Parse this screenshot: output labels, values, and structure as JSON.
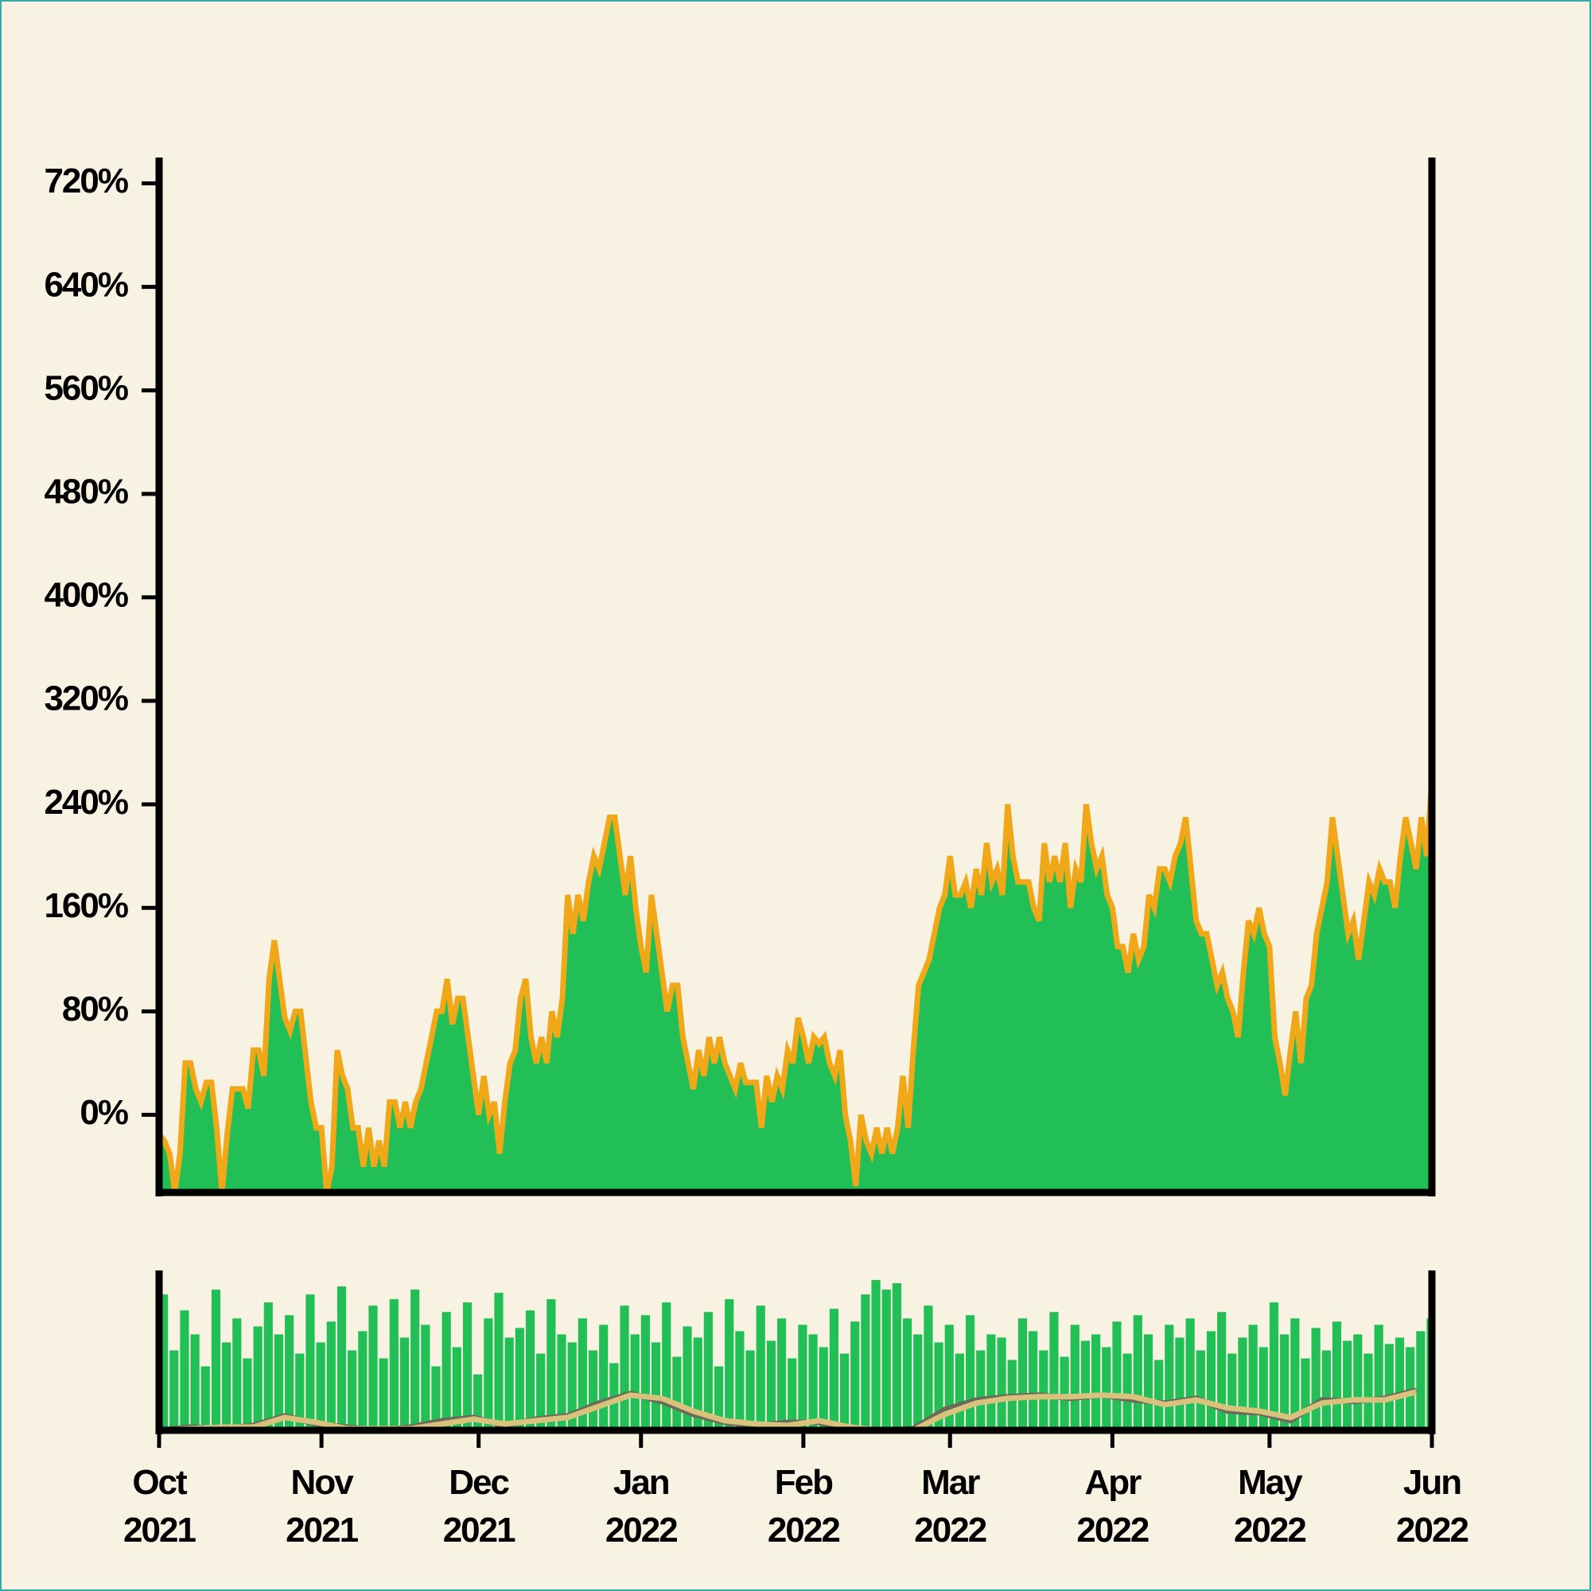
{
  "chart_data": [
    {
      "type": "area",
      "x": [
        0,
        1,
        2,
        3,
        4,
        5,
        6,
        7,
        8,
        9,
        10,
        11,
        12,
        13,
        14,
        15,
        16,
        17,
        18,
        19,
        20,
        21,
        22,
        23,
        24,
        25,
        26,
        27,
        28,
        29,
        30,
        31,
        32,
        33,
        34,
        35,
        36,
        37,
        38,
        39,
        40,
        41,
        42,
        43,
        44,
        45,
        46,
        47,
        48,
        49,
        50,
        51,
        52,
        53,
        54,
        55,
        56,
        57,
        58,
        59,
        60,
        61,
        62,
        63,
        64,
        65,
        66,
        67,
        68,
        69,
        70,
        71,
        72,
        73,
        74,
        75,
        76,
        77,
        78,
        79,
        80,
        81,
        82,
        83,
        84,
        85,
        86,
        87,
        88,
        89,
        90,
        91,
        92,
        93,
        94,
        95,
        96,
        97,
        98,
        99,
        100,
        101,
        102,
        103,
        104,
        105,
        106,
        107,
        108,
        109,
        110,
        111,
        112,
        113,
        114,
        115,
        116,
        117,
        118,
        119,
        120,
        121,
        122,
        123,
        124,
        125,
        126,
        127,
        128,
        129,
        130,
        131,
        132,
        133,
        134,
        135,
        136,
        137,
        138,
        139,
        140,
        141,
        142,
        143,
        144,
        145,
        146,
        147,
        148,
        149,
        150,
        151,
        152,
        153,
        154,
        155,
        156,
        157,
        158,
        159,
        160,
        161,
        162,
        163,
        164,
        165,
        166,
        167,
        168,
        169,
        170,
        171,
        172,
        173,
        174,
        175,
        176,
        177,
        178,
        179,
        180,
        181,
        182,
        183,
        184,
        185,
        186,
        187,
        188,
        189,
        190,
        191,
        192,
        193,
        194,
        195,
        196,
        197,
        198,
        199,
        200,
        201,
        202,
        203,
        204,
        205,
        206,
        207,
        208,
        209,
        210,
        211,
        212,
        213,
        214,
        215,
        216,
        217,
        218,
        219,
        220,
        221,
        222,
        223,
        224,
        225,
        226,
        227,
        228,
        229,
        230,
        231,
        232,
        233,
        234,
        235,
        236,
        237,
        238,
        239,
        240,
        241,
        242,
        243
      ],
      "values": [
        -15,
        -20,
        -30,
        -60,
        -30,
        40,
        40,
        20,
        10,
        25,
        25,
        -10,
        -60,
        -15,
        20,
        20,
        20,
        5,
        50,
        50,
        30,
        105,
        135,
        105,
        75,
        65,
        80,
        80,
        45,
        10,
        -10,
        -10,
        -60,
        -40,
        50,
        30,
        20,
        -10,
        -10,
        -40,
        -10,
        -40,
        -20,
        -40,
        10,
        10,
        -10,
        10,
        -10,
        10,
        20,
        40,
        60,
        80,
        80,
        105,
        70,
        90,
        90,
        60,
        30,
        0,
        30,
        0,
        10,
        -30,
        10,
        40,
        50,
        90,
        105,
        60,
        40,
        60,
        40,
        80,
        60,
        90,
        170,
        140,
        170,
        150,
        180,
        200,
        190,
        210,
        230,
        230,
        200,
        170,
        200,
        160,
        130,
        110,
        170,
        140,
        110,
        80,
        100,
        100,
        60,
        40,
        20,
        50,
        30,
        60,
        40,
        60,
        40,
        30,
        20,
        40,
        25,
        25,
        25,
        -10,
        30,
        10,
        30,
        20,
        50,
        40,
        75,
        60,
        40,
        60,
        55,
        60,
        40,
        30,
        50,
        0,
        -20,
        -55,
        0,
        -20,
        -30,
        -10,
        -30,
        -10,
        -30,
        -10,
        30,
        -10,
        50,
        100,
        110,
        120,
        140,
        160,
        170,
        200,
        170,
        170,
        180,
        160,
        190,
        170,
        210,
        180,
        190,
        170,
        240,
        200,
        180,
        180,
        180,
        160,
        150,
        210,
        180,
        200,
        180,
        210,
        160,
        190,
        180,
        240,
        210,
        190,
        200,
        170,
        160,
        130,
        130,
        110,
        140,
        120,
        130,
        170,
        160,
        190,
        190,
        180,
        200,
        210,
        230,
        190,
        150,
        140,
        140,
        120,
        100,
        110,
        90,
        80,
        60,
        110,
        150,
        140,
        160,
        140,
        130,
        60,
        40,
        15,
        50,
        80,
        40,
        90,
        100,
        140,
        160,
        180,
        230,
        200,
        170,
        140,
        150,
        120,
        150,
        180,
        170,
        190,
        180,
        180,
        160,
        200,
        230,
        210,
        190,
        230,
        200,
        260
      ],
      "color": "#21bf55",
      "line_color": "#f0a818",
      "xlim": [
        0,
        243
      ],
      "ylim": [
        -60,
        740
      ],
      "yticks": [
        {
          "value": 0,
          "label": "0%"
        },
        {
          "value": 80,
          "label": "80%"
        },
        {
          "value": 160,
          "label": "160%"
        },
        {
          "value": 240,
          "label": "240%"
        },
        {
          "value": 320,
          "label": "320%"
        },
        {
          "value": 400,
          "label": "400%"
        },
        {
          "value": 480,
          "label": "480%"
        },
        {
          "value": 560,
          "label": "560%"
        },
        {
          "value": 640,
          "label": "640%"
        },
        {
          "value": 720,
          "label": "720%"
        }
      ]
    },
    {
      "type": "bar",
      "x": [
        0,
        2,
        4,
        6,
        8,
        10,
        12,
        14,
        16,
        18,
        20,
        22,
        24,
        26,
        28,
        30,
        32,
        34,
        36,
        38,
        40,
        42,
        44,
        46,
        48,
        50,
        52,
        54,
        56,
        58,
        60,
        62,
        64,
        66,
        68,
        70,
        72,
        74,
        76,
        78,
        80,
        82,
        84,
        86,
        88,
        90,
        92,
        94,
        96,
        98,
        100,
        102,
        104,
        106,
        108,
        110,
        112,
        114,
        116,
        118,
        120,
        122,
        124,
        126,
        128,
        130,
        132,
        134,
        136,
        138,
        140,
        142,
        144,
        146,
        148,
        150,
        152,
        154,
        156,
        158,
        160,
        162,
        164,
        166,
        168,
        170,
        172,
        174,
        176,
        178,
        180,
        182,
        184,
        186,
        188,
        190,
        192,
        194,
        196,
        198,
        200,
        202,
        204,
        206,
        208,
        210,
        212,
        214,
        216,
        218,
        220,
        222,
        224,
        226,
        228,
        230,
        232,
        234,
        236,
        238,
        240,
        242
      ],
      "values": [
        85,
        50,
        75,
        60,
        40,
        88,
        55,
        70,
        45,
        65,
        80,
        60,
        72,
        48,
        85,
        55,
        68,
        90,
        50,
        62,
        78,
        45,
        82,
        58,
        88,
        66,
        40,
        74,
        52,
        80,
        35,
        70,
        86,
        58,
        64,
        75,
        48,
        82,
        60,
        55,
        70,
        50,
        66,
        42,
        78,
        60,
        72,
        55,
        80,
        46,
        65,
        58,
        74,
        40,
        82,
        62,
        50,
        78,
        56,
        70,
        45,
        66,
        60,
        52,
        76,
        48,
        68,
        85,
        94,
        88,
        92,
        70,
        60,
        78,
        55,
        66,
        48,
        72,
        50,
        60,
        58,
        44,
        70,
        62,
        50,
        74,
        46,
        66,
        56,
        60,
        52,
        68,
        48,
        72,
        60,
        44,
        66,
        58,
        70,
        50,
        62,
        74,
        48,
        58,
        66,
        52,
        80,
        60,
        70,
        45,
        64,
        50,
        68,
        56,
        60,
        48,
        66,
        54,
        58,
        52,
        62,
        70
      ],
      "color": "#21bf55",
      "xlim": [
        0,
        243
      ],
      "ylim": [
        0,
        100
      ],
      "xticks": [
        {
          "value": 0,
          "label": "Oct 2021"
        },
        {
          "value": 31,
          "label": "Nov 2021"
        },
        {
          "value": 61,
          "label": "Dec 2021"
        },
        {
          "value": 92,
          "label": "Jan 2022"
        },
        {
          "value": 123,
          "label": "Feb 2022"
        },
        {
          "value": 151,
          "label": "Mar 2022"
        },
        {
          "value": 182,
          "label": "Apr 2022"
        },
        {
          "value": 212,
          "label": "May 2022"
        },
        {
          "value": 243,
          "label": "Jun 2022"
        }
      ],
      "series": [
        {
          "color": "#6b6b5a",
          "x": [
            0,
            6,
            12,
            18,
            24,
            30,
            36,
            42,
            48,
            54,
            60,
            66,
            72,
            78,
            84,
            90,
            96,
            102,
            108,
            114,
            120,
            126,
            132,
            138,
            144,
            150,
            156,
            162,
            168,
            174,
            180,
            186,
            192,
            198,
            204,
            210,
            216,
            222,
            228,
            234,
            240
          ],
          "values": [
            0,
            2,
            1,
            3,
            9,
            4,
            2,
            0,
            2,
            6,
            8,
            3,
            7,
            9,
            17,
            23,
            18,
            10,
            5,
            3,
            5,
            5,
            1,
            0,
            1,
            13,
            19,
            21,
            22,
            20,
            22,
            19,
            17,
            20,
            12,
            11,
            6,
            19,
            18,
            20,
            25
          ]
        },
        {
          "color": "#d8c27c",
          "x": [
            0,
            6,
            12,
            18,
            24,
            30,
            36,
            42,
            48,
            54,
            60,
            66,
            72,
            78,
            84,
            90,
            96,
            102,
            108,
            114,
            120,
            126,
            132,
            138,
            144,
            150,
            156,
            162,
            168,
            174,
            180,
            186,
            192,
            198,
            204,
            210,
            216,
            222,
            228,
            234,
            240
          ],
          "values": [
            0,
            1,
            2,
            2,
            8,
            5,
            1,
            1,
            1,
            4,
            7,
            4,
            6,
            8,
            15,
            22,
            20,
            12,
            6,
            4,
            3,
            6,
            2,
            0,
            0,
            10,
            17,
            20,
            21,
            21,
            22,
            21,
            16,
            19,
            14,
            12,
            8,
            17,
            19,
            19,
            24
          ]
        }
      ]
    }
  ]
}
